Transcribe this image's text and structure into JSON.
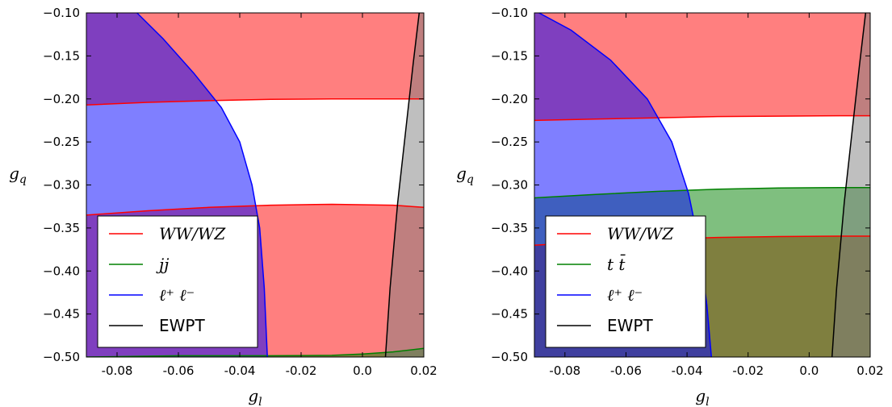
{
  "chart_data": [
    {
      "type": "area",
      "panel": "left",
      "xlabel": "g_l",
      "ylabel": "g_q",
      "xlim": [
        -0.09,
        0.02
      ],
      "ylim": [
        -0.5,
        -0.1
      ],
      "xticks": [
        -0.08,
        -0.06,
        -0.04,
        -0.02,
        0.0,
        0.02
      ],
      "xtick_labels": [
        "-0.08",
        "-0.06",
        "-0.04",
        "-0.02",
        "0.0",
        "0.02"
      ],
      "yticks": [
        -0.1,
        -0.15,
        -0.2,
        -0.25,
        -0.3,
        -0.35,
        -0.4,
        -0.45,
        -0.5
      ],
      "ytick_labels": [
        "−0.10",
        "−0.15",
        "−0.20",
        "−0.25",
        "−0.30",
        "−0.35",
        "−0.40",
        "−0.45",
        "−0.50"
      ],
      "grid": false,
      "legend_position": "lower-left",
      "series": [
        {
          "name": "WW/WZ",
          "color": "#ff0000",
          "fill": "#ff0000",
          "upper_boundary": {
            "x": [
              -0.09,
              -0.07,
              -0.05,
              -0.03,
              -0.01,
              0.01,
              0.02
            ],
            "y": [
              -0.207,
              -0.204,
              -0.202,
              -0.2005,
              -0.2,
              -0.2,
              -0.2
            ]
          },
          "lower_boundary": {
            "x": [
              -0.09,
              -0.07,
              -0.05,
              -0.03,
              -0.01,
              0.01,
              0.02
            ],
            "y": [
              -0.335,
              -0.33,
              -0.326,
              -0.3235,
              -0.3225,
              -0.3235,
              -0.326
            ]
          }
        },
        {
          "name": "jj",
          "color": "#008000",
          "fill": "#008000",
          "boundary": {
            "x": [
              -0.09,
              -0.06,
              -0.03,
              -0.01,
              0.0,
              0.01,
              0.02
            ],
            "y": [
              -0.5,
              -0.4985,
              -0.4985,
              -0.498,
              -0.4965,
              -0.494,
              -0.49
            ]
          }
        },
        {
          "name": "ℓ⁺ ℓ⁻",
          "color": "#0000ff",
          "fill": "#0000ff",
          "boundary": {
            "x": [
              -0.0735,
              -0.065,
              -0.055,
              -0.046,
              -0.04,
              -0.036,
              -0.0335,
              -0.032,
              -0.031
            ],
            "y": [
              -0.1,
              -0.13,
              -0.17,
              -0.21,
              -0.25,
              -0.3,
              -0.35,
              -0.42,
              -0.5
            ]
          }
        },
        {
          "name": "EWPT",
          "color": "#000000",
          "fill": "#808080",
          "boundary": {
            "x": [
              0.0075,
              0.009,
              0.0115,
              0.014,
              0.0165,
              0.0185
            ],
            "y": [
              -0.5,
              -0.42,
              -0.32,
              -0.24,
              -0.16,
              -0.1
            ]
          }
        }
      ]
    },
    {
      "type": "area",
      "panel": "right",
      "xlabel": "g_l",
      "ylabel": "g_q",
      "xlim": [
        -0.09,
        0.02
      ],
      "ylim": [
        -0.5,
        -0.1
      ],
      "xticks": [
        -0.08,
        -0.06,
        -0.04,
        -0.02,
        0.0,
        0.02
      ],
      "xtick_labels": [
        "-0.08",
        "-0.06",
        "-0.04",
        "-0.02",
        "0.0",
        "0.02"
      ],
      "yticks": [
        -0.1,
        -0.15,
        -0.2,
        -0.25,
        -0.3,
        -0.35,
        -0.4,
        -0.45,
        -0.5
      ],
      "ytick_labels": [
        "−0.10",
        "−0.15",
        "−0.20",
        "−0.25",
        "−0.30",
        "−0.35",
        "−0.40",
        "−0.45",
        "−0.50"
      ],
      "grid": false,
      "legend_position": "lower-left",
      "series": [
        {
          "name": "WW/WZ",
          "color": "#ff0000",
          "fill": "#ff0000",
          "upper_boundary": {
            "x": [
              -0.09,
              -0.07,
              -0.05,
              -0.03,
              -0.01,
              0.01,
              0.02
            ],
            "y": [
              -0.225,
              -0.2235,
              -0.222,
              -0.2205,
              -0.22,
              -0.2195,
              -0.2195
            ]
          },
          "lower_boundary": {
            "x": [
              -0.09,
              -0.07,
              -0.05,
              -0.03,
              -0.01,
              0.01,
              0.02
            ],
            "y": [
              -0.37,
              -0.366,
              -0.363,
              -0.361,
              -0.36,
              -0.3595,
              -0.3595
            ]
          }
        },
        {
          "name": "t t̄",
          "color": "#008000",
          "fill": "#008000",
          "upper_boundary": {
            "x": [
              -0.09,
              -0.07,
              -0.05,
              -0.03,
              -0.01,
              0.01,
              0.02
            ],
            "y": [
              -0.315,
              -0.311,
              -0.3075,
              -0.305,
              -0.3035,
              -0.303,
              -0.303
            ]
          }
        },
        {
          "name": "ℓ⁺ ℓ⁻",
          "color": "#0000ff",
          "fill": "#0000ff",
          "boundary": {
            "x": [
              -0.0885,
              -0.078,
              -0.065,
              -0.053,
              -0.045,
              -0.0395,
              -0.036,
              -0.0335,
              -0.032
            ],
            "y": [
              -0.1,
              -0.12,
              -0.155,
              -0.2,
              -0.25,
              -0.31,
              -0.37,
              -0.44,
              -0.5
            ]
          }
        },
        {
          "name": "EWPT",
          "color": "#000000",
          "fill": "#808080",
          "boundary": {
            "x": [
              0.0075,
              0.009,
              0.0115,
              0.014,
              0.0165,
              0.0185
            ],
            "y": [
              -0.5,
              -0.42,
              -0.32,
              -0.24,
              -0.16,
              -0.1
            ]
          }
        }
      ]
    }
  ],
  "legend_labels": {
    "left": [
      {
        "key": "WW/WZ",
        "text": "WW/WZ",
        "style": "math",
        "color": "#ff0000"
      },
      {
        "key": "jj",
        "text": "jj",
        "style": "math",
        "color": "#008000"
      },
      {
        "key": "ll",
        "text": "ℓ⁺ ℓ⁻",
        "style": "math",
        "color": "#0000ff"
      },
      {
        "key": "EWPT",
        "text": "EWPT",
        "style": "plain",
        "color": "#000000"
      }
    ],
    "right": [
      {
        "key": "WW/WZ",
        "text": "WW/WZ",
        "style": "math",
        "color": "#ff0000"
      },
      {
        "key": "tt",
        "text": "t t̄",
        "style": "math",
        "color": "#008000"
      },
      {
        "key": "ll",
        "text": "ℓ⁺ ℓ⁻",
        "style": "math",
        "color": "#0000ff"
      },
      {
        "key": "EWPT",
        "text": "EWPT",
        "style": "plain",
        "color": "#000000"
      }
    ]
  }
}
